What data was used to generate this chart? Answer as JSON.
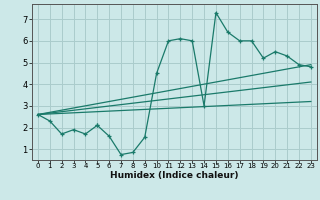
{
  "title": "",
  "xlabel": "Humidex (Indice chaleur)",
  "bg_color": "#cce8e8",
  "grid_color": "#aacccc",
  "line_color": "#1a7a6a",
  "xlim": [
    -0.5,
    23.5
  ],
  "ylim": [
    0.5,
    7.7
  ],
  "xticks": [
    0,
    1,
    2,
    3,
    4,
    5,
    6,
    7,
    8,
    9,
    10,
    11,
    12,
    13,
    14,
    15,
    16,
    17,
    18,
    19,
    20,
    21,
    22,
    23
  ],
  "yticks": [
    1,
    2,
    3,
    4,
    5,
    6,
    7
  ],
  "data_line": {
    "x": [
      0,
      1,
      2,
      3,
      4,
      5,
      5,
      6,
      7,
      8,
      9,
      10,
      11,
      12,
      13,
      14,
      15,
      16,
      17,
      18,
      19,
      20,
      21,
      22,
      23
    ],
    "y": [
      2.6,
      2.3,
      1.7,
      1.9,
      1.7,
      2.1,
      2.1,
      1.6,
      0.75,
      0.85,
      1.55,
      4.5,
      6.0,
      6.1,
      6.0,
      3.0,
      7.3,
      6.4,
      6.0,
      6.0,
      5.2,
      5.5,
      5.3,
      4.9,
      4.8
    ]
  },
  "trend_line1": {
    "x": [
      0,
      23
    ],
    "y": [
      2.6,
      4.9
    ]
  },
  "trend_line2": {
    "x": [
      0,
      23
    ],
    "y": [
      2.6,
      4.1
    ]
  },
  "trend_line3": {
    "x": [
      0,
      23
    ],
    "y": [
      2.6,
      3.2
    ]
  }
}
